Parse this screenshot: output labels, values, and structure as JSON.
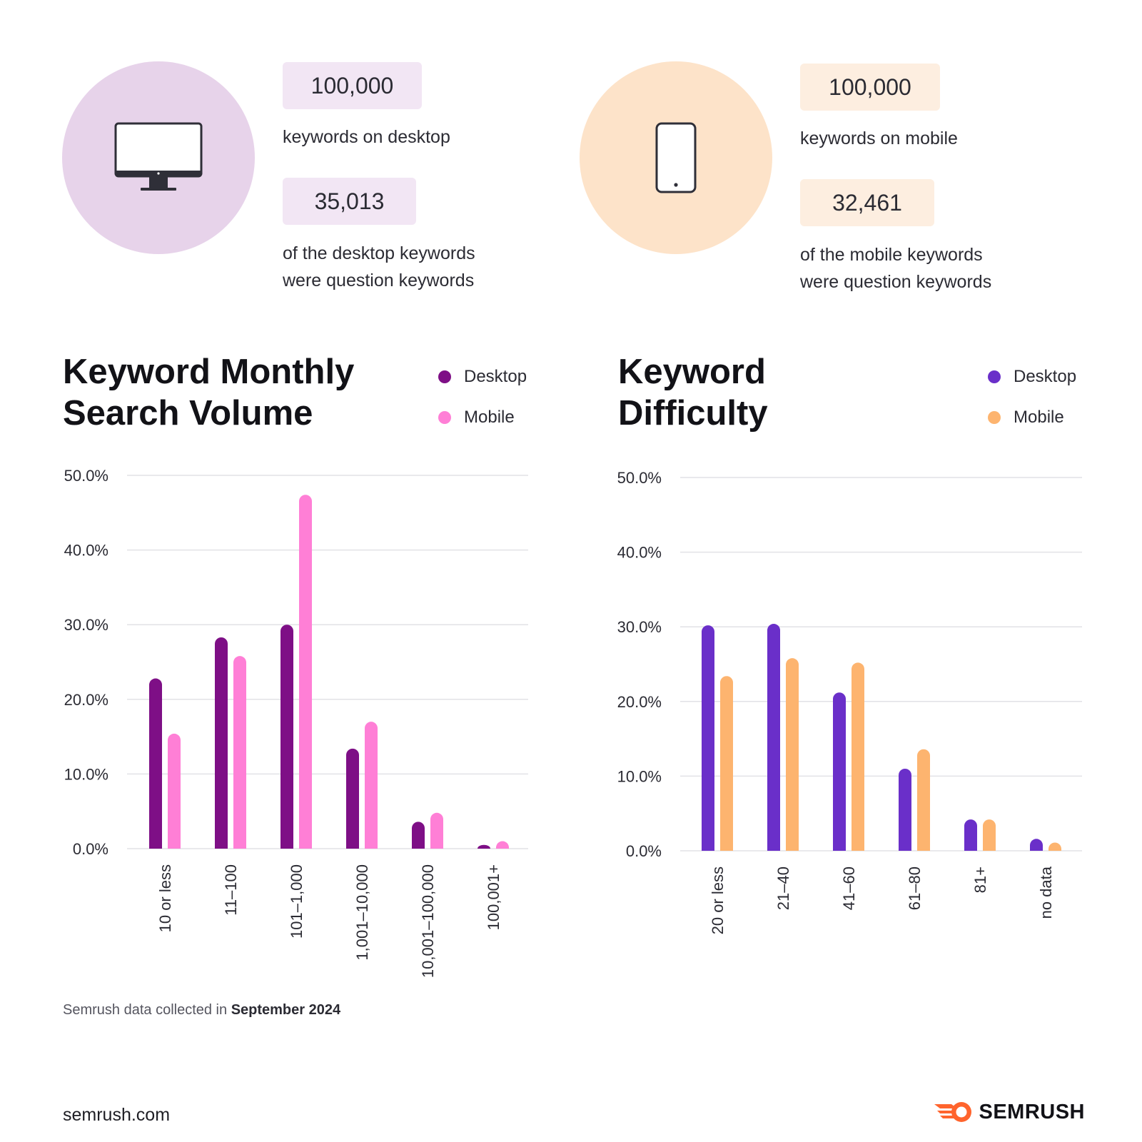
{
  "colors": {
    "desktop_circle": "#e7d3ea",
    "mobile_circle": "#fde3c9",
    "desktop_pill": "#f2e6f4",
    "mobile_pill": "#fdeee0",
    "volume_desktop": "#7e0f86",
    "volume_mobile": "#ff7fd6",
    "difficulty_desktop": "#6a2fc9",
    "difficulty_mobile": "#fdb46f",
    "grid": "#e2e2e6",
    "text": "#2b2b33",
    "brand_orange": "#ff642d"
  },
  "desktop": {
    "icon": "desktop-monitor-icon",
    "total": "100,000",
    "total_label": "keywords on desktop",
    "questions": "35,013",
    "questions_label_1": "of the desktop keywords",
    "questions_label_2": "were question keywords"
  },
  "mobile": {
    "icon": "smartphone-icon",
    "total": "100,000",
    "total_label": "keywords on mobile",
    "questions": "32,461",
    "questions_label_1": "of the mobile keywords",
    "questions_label_2": "were question keywords"
  },
  "chart_data": [
    {
      "type": "bar",
      "title": "Keyword Monthly Search Volume",
      "title_lines": [
        "Keyword Monthly",
        "Search Volume"
      ],
      "xlabel": "",
      "ylabel": "",
      "ylim": [
        0,
        50
      ],
      "yticks": [
        "0.0%",
        "10.0%",
        "20.0%",
        "30.0%",
        "40.0%",
        "50.0%"
      ],
      "grid": true,
      "legend_position": "top-right",
      "categories": [
        "10 or less",
        "11–100",
        "101–1,000",
        "1,001–10,000",
        "10,001–100,000",
        "100,001+"
      ],
      "series": [
        {
          "name": "Desktop",
          "color": "#7e0f86",
          "values": [
            22.8,
            28.3,
            30.0,
            13.4,
            3.6,
            0.5
          ]
        },
        {
          "name": "Mobile",
          "color": "#ff7fd6",
          "values": [
            15.4,
            25.8,
            47.4,
            17.0,
            4.8,
            1.0
          ]
        }
      ]
    },
    {
      "type": "bar",
      "title": "Keyword Difficulty",
      "title_lines": [
        "Keyword",
        "Difficulty"
      ],
      "xlabel": "",
      "ylabel": "",
      "ylim": [
        0,
        50
      ],
      "yticks": [
        "0.0%",
        "10.0%",
        "20.0%",
        "30.0%",
        "40.0%",
        "50.0%"
      ],
      "grid": true,
      "legend_position": "top-right",
      "categories": [
        "20 or less",
        "21–40",
        "41–60",
        "61–80",
        "81+",
        "no data"
      ],
      "series": [
        {
          "name": "Desktop",
          "color": "#6a2fc9",
          "values": [
            30.2,
            30.4,
            21.2,
            11.0,
            4.2,
            1.6
          ]
        },
        {
          "name": "Mobile",
          "color": "#fdb46f",
          "values": [
            23.4,
            25.8,
            25.2,
            13.6,
            4.2,
            1.1
          ]
        }
      ]
    }
  ],
  "footer": {
    "source_prefix": "Semrush data collected in ",
    "source_date": "September 2024",
    "website": "semrush.com",
    "brand_name": "SEMRUSH",
    "brand_icon": "semrush-logo-icon"
  }
}
